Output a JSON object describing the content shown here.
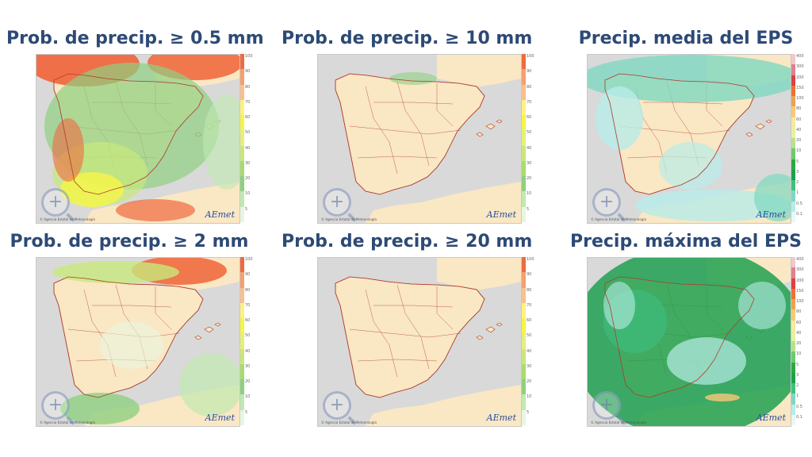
{
  "panels": [
    {
      "id": "p05",
      "title": "Prob. de precip.  ≥ 0.5 mm",
      "scale": "prob",
      "pattern": "heavy"
    },
    {
      "id": "p10",
      "title": "Prob. de precip.  ≥ 10 mm",
      "scale": "prob",
      "pattern": "few"
    },
    {
      "id": "mean",
      "title": "Precip. media del EPS",
      "scale": "amount",
      "pattern": "cyan"
    },
    {
      "id": "p2",
      "title": "Prob. de precip.  ≥ 2 mm",
      "scale": "prob",
      "pattern": "medium"
    },
    {
      "id": "p20",
      "title": "Prob. de precip.  ≥ 20 mm",
      "scale": "prob",
      "pattern": "none"
    },
    {
      "id": "max",
      "title": "Precip. máxima del EPS",
      "scale": "amount",
      "pattern": "green"
    }
  ],
  "colors": {
    "title": "#2d4a75",
    "land": "#fae7c4",
    "sea": "#d9d9d9",
    "borders": "#b04030"
  },
  "prob_scale": {
    "ticks": [
      "100",
      "90",
      "80",
      "70",
      "60",
      "50",
      "40",
      "30",
      "20",
      "10",
      "5"
    ],
    "colors": [
      "#f06a40",
      "#f4a070",
      "#f7c090",
      "#fff080",
      "#f5f545",
      "#e5f07a",
      "#c8e87c",
      "#a8dc6c",
      "#8fd080",
      "#c0eab0",
      "#e8f6e0"
    ]
  },
  "amount_scale": {
    "ticks": [
      "400",
      "300",
      "200",
      "150",
      "100",
      "80",
      "60",
      "40",
      "20",
      "10",
      "5",
      "3",
      "2",
      "1",
      "0.5",
      "0.1"
    ],
    "colors": [
      "#f0c8d0",
      "#e08090",
      "#e04040",
      "#f07030",
      "#f0a050",
      "#f8c878",
      "#f8e8a0",
      "#e8f0a0",
      "#b8e090",
      "#70c870",
      "#30a840",
      "#1ea050",
      "#40c080",
      "#7ed8c0",
      "#b8ece8",
      "#e8f8f8"
    ]
  },
  "logo_text": "AEmet",
  "credit_text": "© Agencia Estatal de Meteorología"
}
